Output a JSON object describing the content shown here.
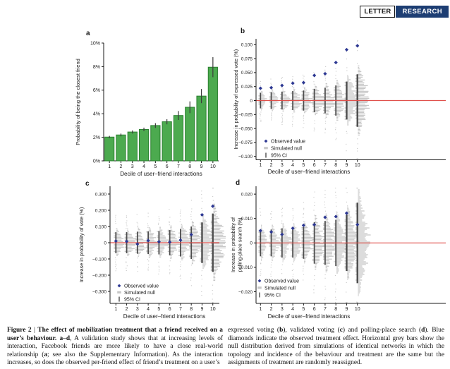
{
  "header": {
    "letter": "LETTER",
    "research": "RESEARCH"
  },
  "colors": {
    "research_bg": "#1d3e73",
    "bar_fill": "#4caa4f",
    "bar_edge": "#2a7f2f",
    "error_bar": "#3a3a3a",
    "observed_diamond": "#2c3792",
    "null_grey": "#c7c7c7",
    "ci_dark": "#4d4d4d",
    "zero_line_red": "#e0504b",
    "axis": "#1a1a1a"
  },
  "chart_data": [
    {
      "id": "a",
      "type": "bar",
      "panel_label": "a",
      "categories": [
        "1",
        "2",
        "3",
        "4",
        "5",
        "6",
        "7",
        "8",
        "9",
        "10"
      ],
      "values": [
        2.02,
        2.2,
        2.45,
        2.67,
        3.0,
        3.32,
        3.85,
        4.55,
        5.5,
        7.95
      ],
      "errors": [
        0.1,
        0.12,
        0.13,
        0.15,
        0.2,
        0.22,
        0.38,
        0.5,
        0.6,
        0.85
      ],
      "xlabel": "Decile of user–friend interactions",
      "ylabel": [
        "Probability of being the closest friend"
      ],
      "ytick_values": [
        0,
        2,
        4,
        6,
        8,
        10
      ],
      "ytick_labels": [
        "0%",
        "2%",
        "4%",
        "6%",
        "8%",
        "10%"
      ],
      "ylim": [
        0,
        10
      ],
      "grid": false
    },
    {
      "id": "b",
      "type": "observed-vs-simulated-null",
      "panel_label": "b",
      "categories": [
        "1",
        "2",
        "3",
        "4",
        "5",
        "6",
        "7",
        "8",
        "9",
        "10"
      ],
      "observed": [
        0.022,
        0.023,
        0.027,
        0.031,
        0.032,
        0.045,
        0.048,
        0.068,
        0.091,
        0.098
      ],
      "ci95": [
        0.014,
        0.015,
        0.016,
        0.017,
        0.018,
        0.021,
        0.023,
        0.027,
        0.034,
        0.047
      ],
      "xlabel": "Decile of user–friend interactions",
      "ylabel": [
        "Increase in probability of expressed vote (%)"
      ],
      "ytick_values": [
        0.1,
        0.075,
        0.05,
        0.025,
        0,
        -0.025,
        -0.05,
        -0.075,
        -0.1
      ],
      "ytick_labels": [
        "0.100",
        "0.075",
        "0.050",
        "0.025",
        "0",
        "−0.025",
        "−0.050",
        "−0.075",
        "−0.100"
      ],
      "ylim": [
        -0.106,
        0.11
      ],
      "zero_line": true,
      "legend": [
        "Observed value",
        "Simulated null",
        "95% CI"
      ],
      "legend_position": "bottom-left"
    },
    {
      "id": "c",
      "type": "observed-vs-simulated-null",
      "panel_label": "c",
      "categories": [
        "1",
        "2",
        "3",
        "4",
        "5",
        "6",
        "7",
        "8",
        "9",
        "10"
      ],
      "observed": [
        0.01,
        0.008,
        -0.008,
        0.013,
        0.006,
        0.004,
        0.016,
        0.05,
        0.172,
        0.225
      ],
      "ci95": [
        0.065,
        0.065,
        0.068,
        0.07,
        0.072,
        0.078,
        0.085,
        0.1,
        0.125,
        0.18
      ],
      "xlabel": "Decile of user–friend interactions",
      "ylabel": [
        "Increase in probability of vote (%)"
      ],
      "ytick_values": [
        0.3,
        0.2,
        0.1,
        0,
        -0.1,
        -0.2,
        -0.3
      ],
      "ytick_labels": [
        "0.300",
        "0.200",
        "0.100",
        "0",
        "−0.100",
        "−0.200",
        "−0.300"
      ],
      "ylim": [
        -0.37,
        0.35
      ],
      "zero_line": true,
      "legend": [
        "Observed value",
        "Simulated null",
        "95% CI"
      ],
      "legend_position": "bottom-left"
    },
    {
      "id": "d",
      "type": "observed-vs-simulated-null",
      "panel_label": "d",
      "categories": [
        "1",
        "2",
        "3",
        "4",
        "5",
        "6",
        "7",
        "8",
        "9",
        "10"
      ],
      "observed": [
        0.005,
        0.0045,
        0.0035,
        0.006,
        0.0072,
        0.0075,
        0.0105,
        0.0108,
        0.0122,
        0.0075
      ],
      "ci95": [
        0.0055,
        0.0055,
        0.006,
        0.006,
        0.0065,
        0.0085,
        0.009,
        0.0095,
        0.0115,
        0.0165
      ],
      "xlabel": "Decile of user–friend interactions",
      "ylabel": [
        "Increase in probability of",
        "polling-place search (%)"
      ],
      "ytick_values": [
        0.02,
        0.01,
        0,
        -0.01,
        -0.02
      ],
      "ytick_labels": [
        "0.020",
        "0.010",
        "0",
        "−0.010",
        "−0.020"
      ],
      "ylim": [
        -0.0249,
        0.0229
      ],
      "zero_line": true,
      "legend": [
        "Observed value",
        "Simulated null",
        "95% CI"
      ],
      "legend_position": "bottom-left"
    }
  ],
  "caption": {
    "left": [
      {
        "t": "Figure 2",
        "b": true
      },
      {
        "t": " | ",
        "b": false
      },
      {
        "t": "The effect of mobilization treatment that a friend received on a user’s behaviour. ",
        "b": true
      },
      {
        "t": "a–d",
        "b": true
      },
      {
        "t": ", A validation study shows that at increasing levels of interaction, Facebook friends are more likely to have a close real-world relationship (",
        "b": false
      },
      {
        "t": "a",
        "b": true
      },
      {
        "t": "; see also the Supplementary Information). As the interaction increases, so does the observed per-friend effect of friend’s treatment on a user’s",
        "b": false
      }
    ],
    "right": [
      {
        "t": "expressed voting (",
        "b": false
      },
      {
        "t": "b",
        "b": true
      },
      {
        "t": "), validated voting (",
        "b": false
      },
      {
        "t": "c",
        "b": true
      },
      {
        "t": ") and polling-place search (",
        "b": false
      },
      {
        "t": "d",
        "b": true
      },
      {
        "t": "). Blue diamonds indicate the observed treatment effect. Horizontal grey bars show the null distribution derived from simulations of identical networks in which the topology and incidence of the behaviour and treatment are the same but the assignments of treatment are randomly reassigned.",
        "b": false
      }
    ]
  }
}
